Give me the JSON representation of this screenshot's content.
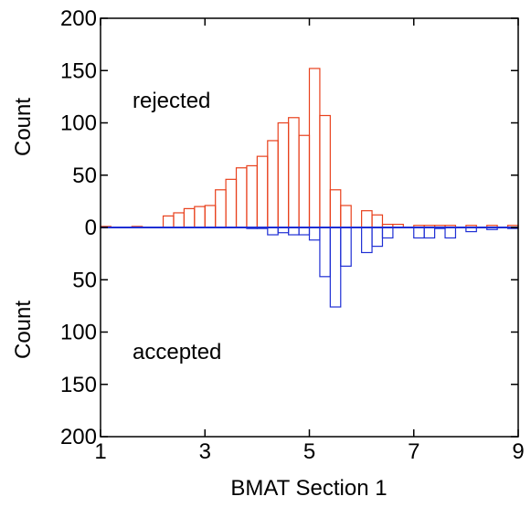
{
  "chart_data": {
    "type": "bar",
    "xlabel": "BMAT Section 1",
    "ylabel_top": "Count",
    "ylabel_bottom": "Count",
    "xlim": [
      1,
      9
    ],
    "x_ticks": [
      1,
      3,
      5,
      7,
      9
    ],
    "ylim": [
      -200,
      200
    ],
    "y_ticks": [
      200,
      150,
      100,
      50,
      0,
      50,
      100,
      150,
      200
    ],
    "bin_width": 0.2,
    "annotations": {
      "top": "rejected",
      "bottom": "accepted"
    },
    "colors": {
      "rejected": "#e8401c",
      "accepted": "#1f2fd4",
      "zero_line": "#1f2fd4",
      "axis": "#000000"
    },
    "series": [
      {
        "name": "rejected",
        "direction": "up",
        "bins_start": [
          1.0,
          1.6,
          2.2,
          2.4,
          2.6,
          2.8,
          3.0,
          3.2,
          3.4,
          3.6,
          3.8,
          4.0,
          4.2,
          4.4,
          4.6,
          4.8,
          5.0,
          5.2,
          5.4,
          5.6,
          6.0,
          6.2,
          6.4,
          6.6,
          7.0,
          7.2,
          7.4,
          7.6,
          8.0,
          8.4,
          8.8
        ],
        "values": [
          1,
          1,
          11,
          14,
          18,
          20,
          21,
          36,
          46,
          57,
          59,
          68,
          83,
          100,
          105,
          88,
          152,
          107,
          36,
          21,
          16,
          12,
          3,
          3,
          2,
          2,
          2,
          2,
          2,
          2,
          2
        ]
      },
      {
        "name": "accepted",
        "direction": "down",
        "bins_start": [
          3.8,
          4.0,
          4.2,
          4.4,
          4.6,
          4.8,
          5.0,
          5.2,
          5.4,
          5.6,
          6.0,
          6.2,
          6.4,
          7.0,
          7.2,
          7.4,
          7.6,
          8.0,
          8.4,
          8.8
        ],
        "values": [
          1,
          1,
          7,
          5,
          7,
          7,
          12,
          47,
          76,
          37,
          24,
          18,
          10,
          10,
          10,
          1,
          10,
          4,
          2,
          1
        ]
      }
    ]
  }
}
